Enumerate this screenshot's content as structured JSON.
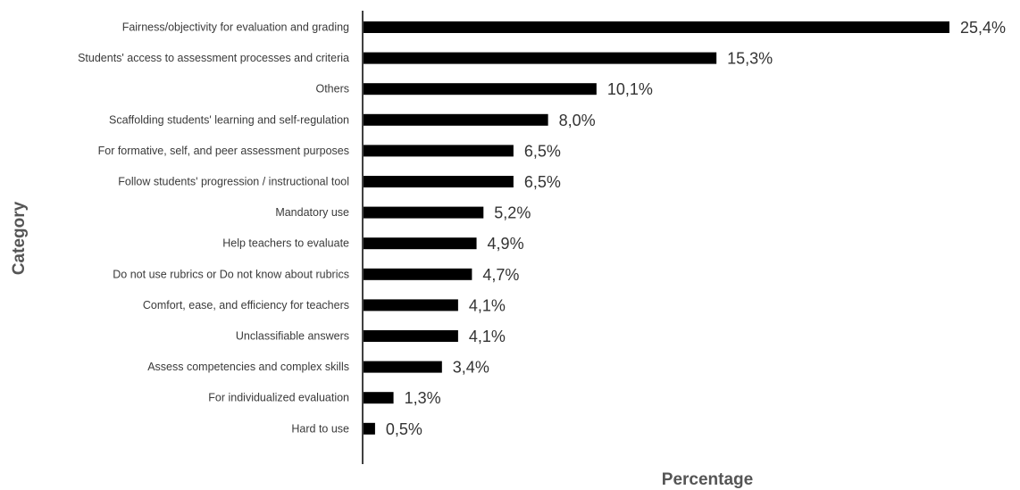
{
  "chart_data": {
    "type": "bar",
    "orientation": "horizontal",
    "title": "",
    "xlabel": "Percentage",
    "ylabel": "Category",
    "xlim": [
      0,
      25.4
    ],
    "grid": false,
    "legend": "none",
    "bar_color": "#000000",
    "categories": [
      "Fairness/objectivity for evaluation and grading",
      "Students' access to assessment processes and criteria",
      "Others",
      "Scaffolding students' learning and self-regulation",
      "For formative, self, and peer assessment purposes",
      "Follow students' progression / instructional tool",
      "Mandatory use",
      "Help teachers to evaluate",
      "Do not use rubrics or Do not know about rubrics",
      "Comfort, ease, and efficiency for teachers",
      "Unclassifiable answers",
      "Assess competencies and complex skills",
      "For individualized evaluation",
      "Hard to use"
    ],
    "values": [
      25.4,
      15.3,
      10.1,
      8.0,
      6.5,
      6.5,
      5.2,
      4.9,
      4.7,
      4.1,
      4.1,
      3.4,
      1.3,
      0.5
    ],
    "value_labels": [
      "25,4%",
      "15,3%",
      "10,1%",
      "8,0%",
      "6,5%",
      "6,5%",
      "5,2%",
      "4,9%",
      "4,7%",
      "4,1%",
      "4,1%",
      "3,4%",
      "1,3%",
      "0,5%"
    ]
  }
}
